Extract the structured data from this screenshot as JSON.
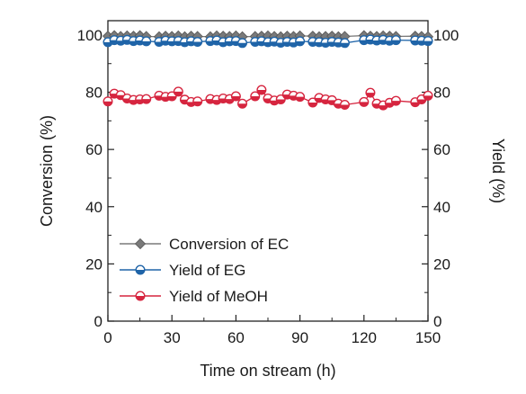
{
  "chart_data": {
    "type": "line",
    "title": "",
    "xlabel": "Time on stream (h)",
    "ylabel": "Conversion (%)",
    "y2label": "Yield (%)",
    "xlim": [
      0,
      150
    ],
    "ylim": [
      0,
      105
    ],
    "y2lim": [
      0,
      105
    ],
    "xticks": [
      "0",
      "30",
      "60",
      "90",
      "120",
      "150"
    ],
    "yticks": [
      "0",
      "20",
      "40",
      "60",
      "80",
      "100"
    ],
    "y2ticks": [
      "0",
      "20",
      "40",
      "60",
      "80",
      "100"
    ],
    "grid": false,
    "legend_position": "lower-left",
    "x": [
      0,
      3,
      6,
      9,
      12,
      15,
      18,
      24,
      27,
      30,
      33,
      36,
      39,
      42,
      48,
      51,
      54,
      57,
      60,
      63,
      69,
      72,
      75,
      78,
      81,
      84,
      87,
      90,
      96,
      99,
      102,
      105,
      108,
      111,
      120,
      123,
      126,
      129,
      132,
      135,
      144,
      147,
      150
    ],
    "series": [
      {
        "name": "Conversion of EC",
        "marker": "diamond",
        "color": "#7a7a7a",
        "values": [
          99.6,
          99.8,
          99.5,
          99.7,
          99.6,
          99.8,
          99.5,
          99.4,
          99.6,
          99.5,
          99.7,
          99.4,
          99.6,
          99.5,
          99.4,
          99.7,
          99.6,
          99.5,
          99.7,
          99.4,
          99.5,
          99.6,
          99.7,
          99.5,
          99.4,
          99.6,
          99.5,
          99.7,
          99.6,
          99.4,
          99.5,
          99.6,
          99.4,
          99.5,
          99.8,
          99.6,
          99.5,
          99.7,
          99.6,
          99.5,
          99.6,
          99.5,
          99.4
        ]
      },
      {
        "name": "Yield of EG",
        "marker": "half-circle",
        "color": "#1f64a8",
        "values": [
          97.5,
          98.2,
          98.0,
          98.3,
          97.9,
          98.1,
          97.8,
          97.6,
          98.0,
          97.8,
          97.9,
          97.5,
          97.8,
          97.6,
          97.9,
          98.1,
          97.5,
          97.8,
          97.9,
          97.2,
          97.6,
          97.8,
          97.5,
          97.7,
          97.3,
          97.6,
          97.4,
          97.8,
          97.6,
          97.5,
          97.3,
          97.6,
          97.4,
          97.2,
          98.2,
          98.4,
          98.1,
          98.3,
          98.0,
          98.2,
          98.1,
          98.0,
          97.9
        ]
      },
      {
        "name": "Yield of MeOH",
        "marker": "half-circle",
        "color": "#d6253f",
        "values": [
          76.8,
          79.5,
          79.0,
          77.8,
          77.3,
          77.5,
          77.6,
          78.8,
          78.4,
          78.6,
          80.2,
          77.4,
          76.6,
          76.8,
          77.6,
          77.3,
          77.8,
          77.6,
          78.6,
          76.0,
          78.6,
          80.8,
          77.8,
          77.1,
          77.5,
          79.2,
          78.8,
          78.4,
          76.4,
          78.0,
          77.5,
          77.2,
          76.0,
          75.6,
          76.6,
          79.8,
          76.0,
          75.4,
          76.3,
          77.0,
          76.5,
          77.5,
          78.8
        ]
      }
    ]
  }
}
